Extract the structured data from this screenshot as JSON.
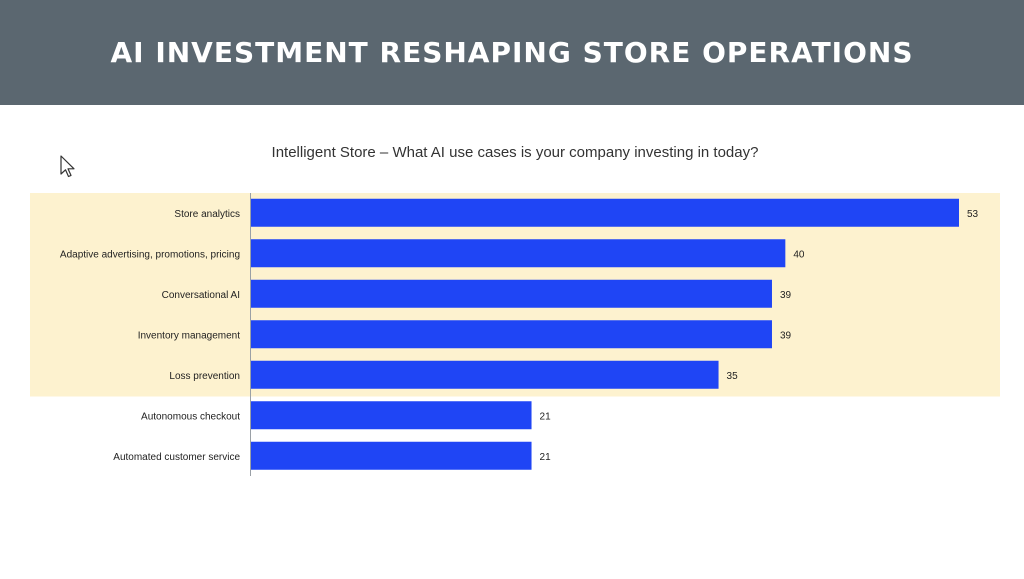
{
  "header": {
    "title": "AI INVESTMENT RESHAPING STORE OPERATIONS"
  },
  "colors": {
    "header_bg": "#5b6770",
    "bar": "#1f45f5",
    "highlight": "#fdf2cf"
  },
  "cursor": {
    "icon": "mouse-pointer-icon"
  },
  "chart_data": {
    "type": "bar",
    "orientation": "horizontal",
    "title": "Intelligent Store – What AI use cases is your company investing in today?",
    "categories": [
      "Store analytics",
      "Adaptive advertising, promotions, pricing",
      "Conversational AI",
      "Inventory management",
      "Loss prevention",
      "Autonomous checkout",
      "Automated customer service"
    ],
    "values": [
      53,
      40,
      39,
      39,
      35,
      21,
      21
    ],
    "highlighted_count": 5,
    "data_labels": true,
    "grid": false,
    "xlim": [
      0,
      56
    ]
  }
}
